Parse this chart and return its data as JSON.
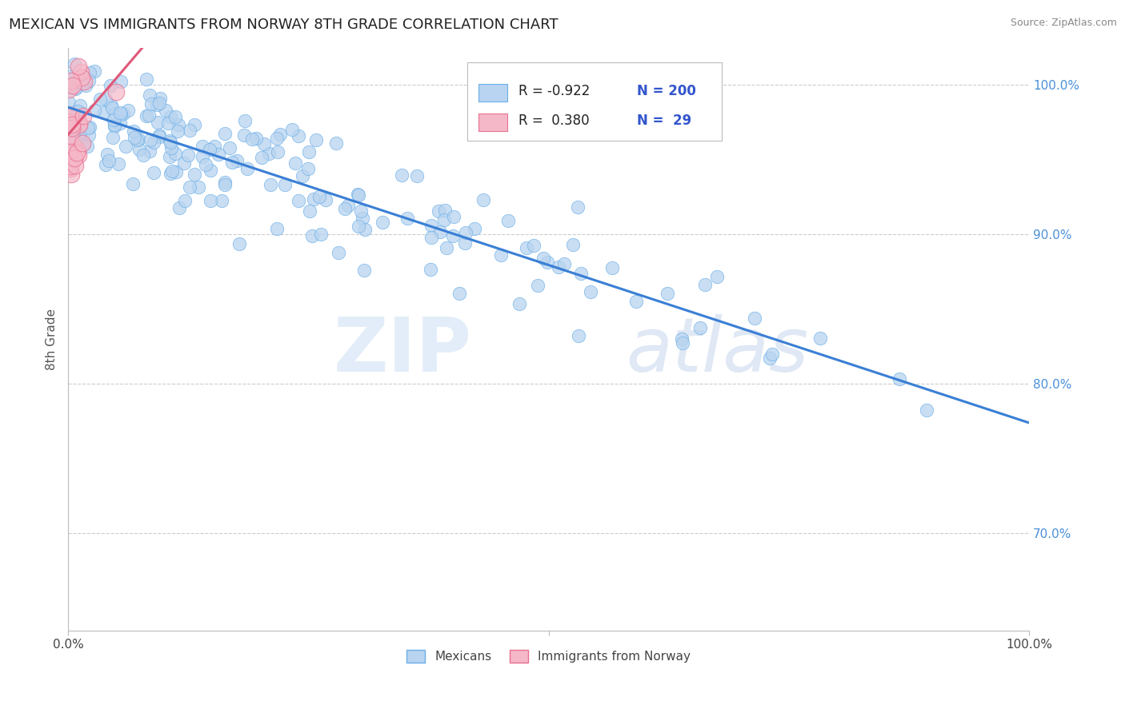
{
  "title": "MEXICAN VS IMMIGRANTS FROM NORWAY 8TH GRADE CORRELATION CHART",
  "source_text": "Source: ZipAtlas.com",
  "ylabel": "8th Grade",
  "xlim": [
    0.0,
    1.0
  ],
  "ylim": [
    0.635,
    1.025
  ],
  "blue_R": -0.922,
  "blue_N": 200,
  "pink_R": 0.38,
  "pink_N": 29,
  "blue_color": "#b8d4f0",
  "blue_edge_color": "#6aaee8",
  "blue_line_color": "#3a7fd5",
  "pink_color": "#f5b8c8",
  "pink_edge_color": "#e87090",
  "pink_line_color": "#e05878",
  "legend_label_blue": "Mexicans",
  "legend_label_pink": "Immigrants from Norway",
  "watermark_zip": "ZIP",
  "watermark_atlas": "atlas",
  "background_color": "#ffffff",
  "grid_color": "#cccccc",
  "title_color": "#222222",
  "title_fontsize": 13,
  "axis_label_color": "#555555",
  "right_tick_color": "#4a90d9",
  "legend_text_color": "#222222",
  "legend_n_color": "#3355cc",
  "seed": 7
}
